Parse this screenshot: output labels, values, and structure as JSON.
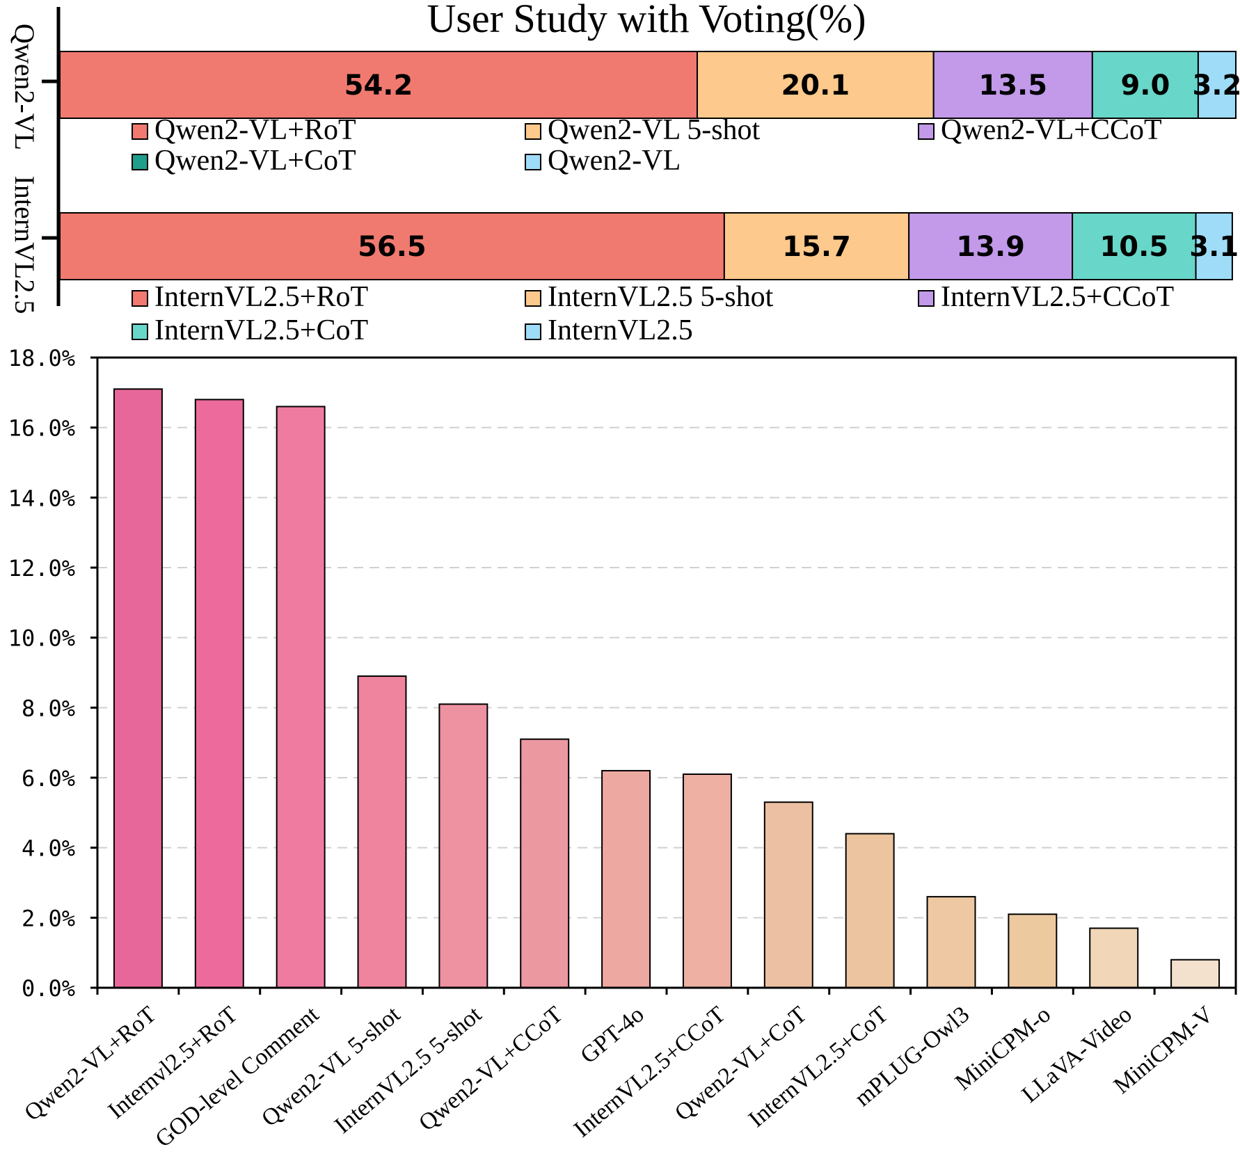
{
  "chart_data": [
    {
      "type": "bar",
      "orientation": "horizontal-stacked",
      "title": "User Study with Voting(%)",
      "xlim": [
        0,
        100
      ],
      "groups": [
        {
          "label": "Qwen2-VL",
          "segments": [
            {
              "name": "Qwen2-VL+RoT",
              "value": 54.2,
              "value_label": "54.2",
              "color": "#f07a70"
            },
            {
              "name": "Qwen2-VL 5-shot",
              "value": 20.1,
              "value_label": "20.1",
              "color": "#fdc98c"
            },
            {
              "name": "Qwen2-VL+CCoT",
              "value": 13.5,
              "value_label": "13.5",
              "color": "#c29ae9"
            },
            {
              "name": "Qwen2-VL+CoT",
              "value": 9.0,
              "value_label": "9.0",
              "color": "#68d6c8"
            },
            {
              "name": "Qwen2-VL",
              "value": 3.2,
              "value_label": "3.2",
              "color": "#9fdcf7"
            }
          ],
          "legend": [
            {
              "label": "Qwen2-VL+RoT",
              "color": "#f07a70"
            },
            {
              "label": "Qwen2-VL 5-shot",
              "color": "#fdc98c"
            },
            {
              "label": "Qwen2-VL+CCoT",
              "color": "#c29ae9"
            },
            {
              "label": "Qwen2-VL+CoT",
              "color": "#1f9e8c"
            },
            {
              "label": "Qwen2-VL",
              "color": "#9fdcf7"
            }
          ]
        },
        {
          "label": "InternVL2.5",
          "segments": [
            {
              "name": "InternVL2.5+RoT",
              "value": 56.5,
              "value_label": "56.5",
              "color": "#f07a70"
            },
            {
              "name": "InternVL2.5 5-shot",
              "value": 15.7,
              "value_label": "15.7",
              "color": "#fdc98c"
            },
            {
              "name": "InternVL2.5+CCoT",
              "value": 13.9,
              "value_label": "13.9",
              "color": "#c29ae9"
            },
            {
              "name": "InternVL2.5+CoT",
              "value": 10.5,
              "value_label": "10.5",
              "color": "#68d6c8"
            },
            {
              "name": "InternVL2.5",
              "value": 3.1,
              "value_label": "3.1",
              "color": "#9fdcf7"
            }
          ],
          "legend": [
            {
              "label": "InternVL2.5+RoT",
              "color": "#f07a70"
            },
            {
              "label": "InternVL2.5 5-shot",
              "color": "#fdc98c"
            },
            {
              "label": "InternVL2.5+CCoT",
              "color": "#c29ae9"
            },
            {
              "label": "InternVL2.5+CoT",
              "color": "#68d6c8"
            },
            {
              "label": "InternVL2.5",
              "color": "#9fdcf7"
            }
          ]
        }
      ]
    },
    {
      "type": "bar",
      "categories": [
        "Qwen2-VL+RoT",
        "Internvl2.5+RoT",
        "GOD-level Comment",
        "Qwen2-VL 5-shot",
        "InternVL2.5 5-shot",
        "Qwen2-VL+CCoT",
        "GPT-4o",
        "InternVL2.5+CCoT",
        "Qwen2-VL+CoT",
        "InternVL2.5+CoT",
        "mPLUG-Owl3",
        "MiniCPM-o",
        "LLaVA-Video",
        "MiniCPM-V"
      ],
      "values": [
        17.1,
        16.8,
        16.6,
        8.9,
        8.1,
        7.1,
        6.2,
        6.1,
        5.3,
        4.4,
        2.6,
        2.1,
        1.7,
        0.8
      ],
      "colors": [
        "#e8679a",
        "#ec6a9c",
        "#ef7ca0",
        "#ef849e",
        "#ee91a0",
        "#eb98a0",
        "#eda8a1",
        "#edb0a2",
        "#ecc0a2",
        "#ecc5a0",
        "#eec8a2",
        "#edc9a0",
        "#f1d6b7",
        "#f3e1cd"
      ],
      "ylim": [
        0,
        18
      ],
      "ytick_labels": [
        "0.0%",
        "2.0%",
        "4.0%",
        "6.0%",
        "8.0%",
        "10.0%",
        "12.0%",
        "14.0%",
        "16.0%",
        "18.0%"
      ],
      "grid": true
    }
  ]
}
